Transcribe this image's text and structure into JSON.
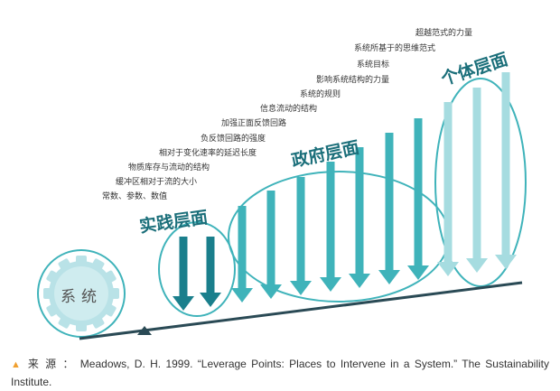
{
  "title": "",
  "system_label": "系统",
  "levels": {
    "practice": "实践层面",
    "government": "政府层面",
    "individual": "个体层面"
  },
  "leverage_points": [
    "常数、参数、数值",
    "缓冲区相对于流的大小",
    "物质库存与流动的结构",
    "相对于变化速率的延迟长度",
    "负反馈回路的强度",
    "加强正面反馈回路",
    "信息流动的结构",
    "系统的规则",
    "影响系统结构的力量",
    "系统目标",
    "系统所基于的思维范式",
    "超越范式的力量"
  ],
  "caption": {
    "marker": "▲",
    "text": "来 源 ： Meadows, D. H. 1999. “Leverage Points: Places to Intervene in a System.” The Sustainability Institute."
  },
  "colors": {
    "dark_teal": "#1a7f8c",
    "mid_teal": "#3fb3ba",
    "light_teal": "#a6dce0",
    "gear": "#b9e2e7",
    "lever": "#2a4a55"
  }
}
